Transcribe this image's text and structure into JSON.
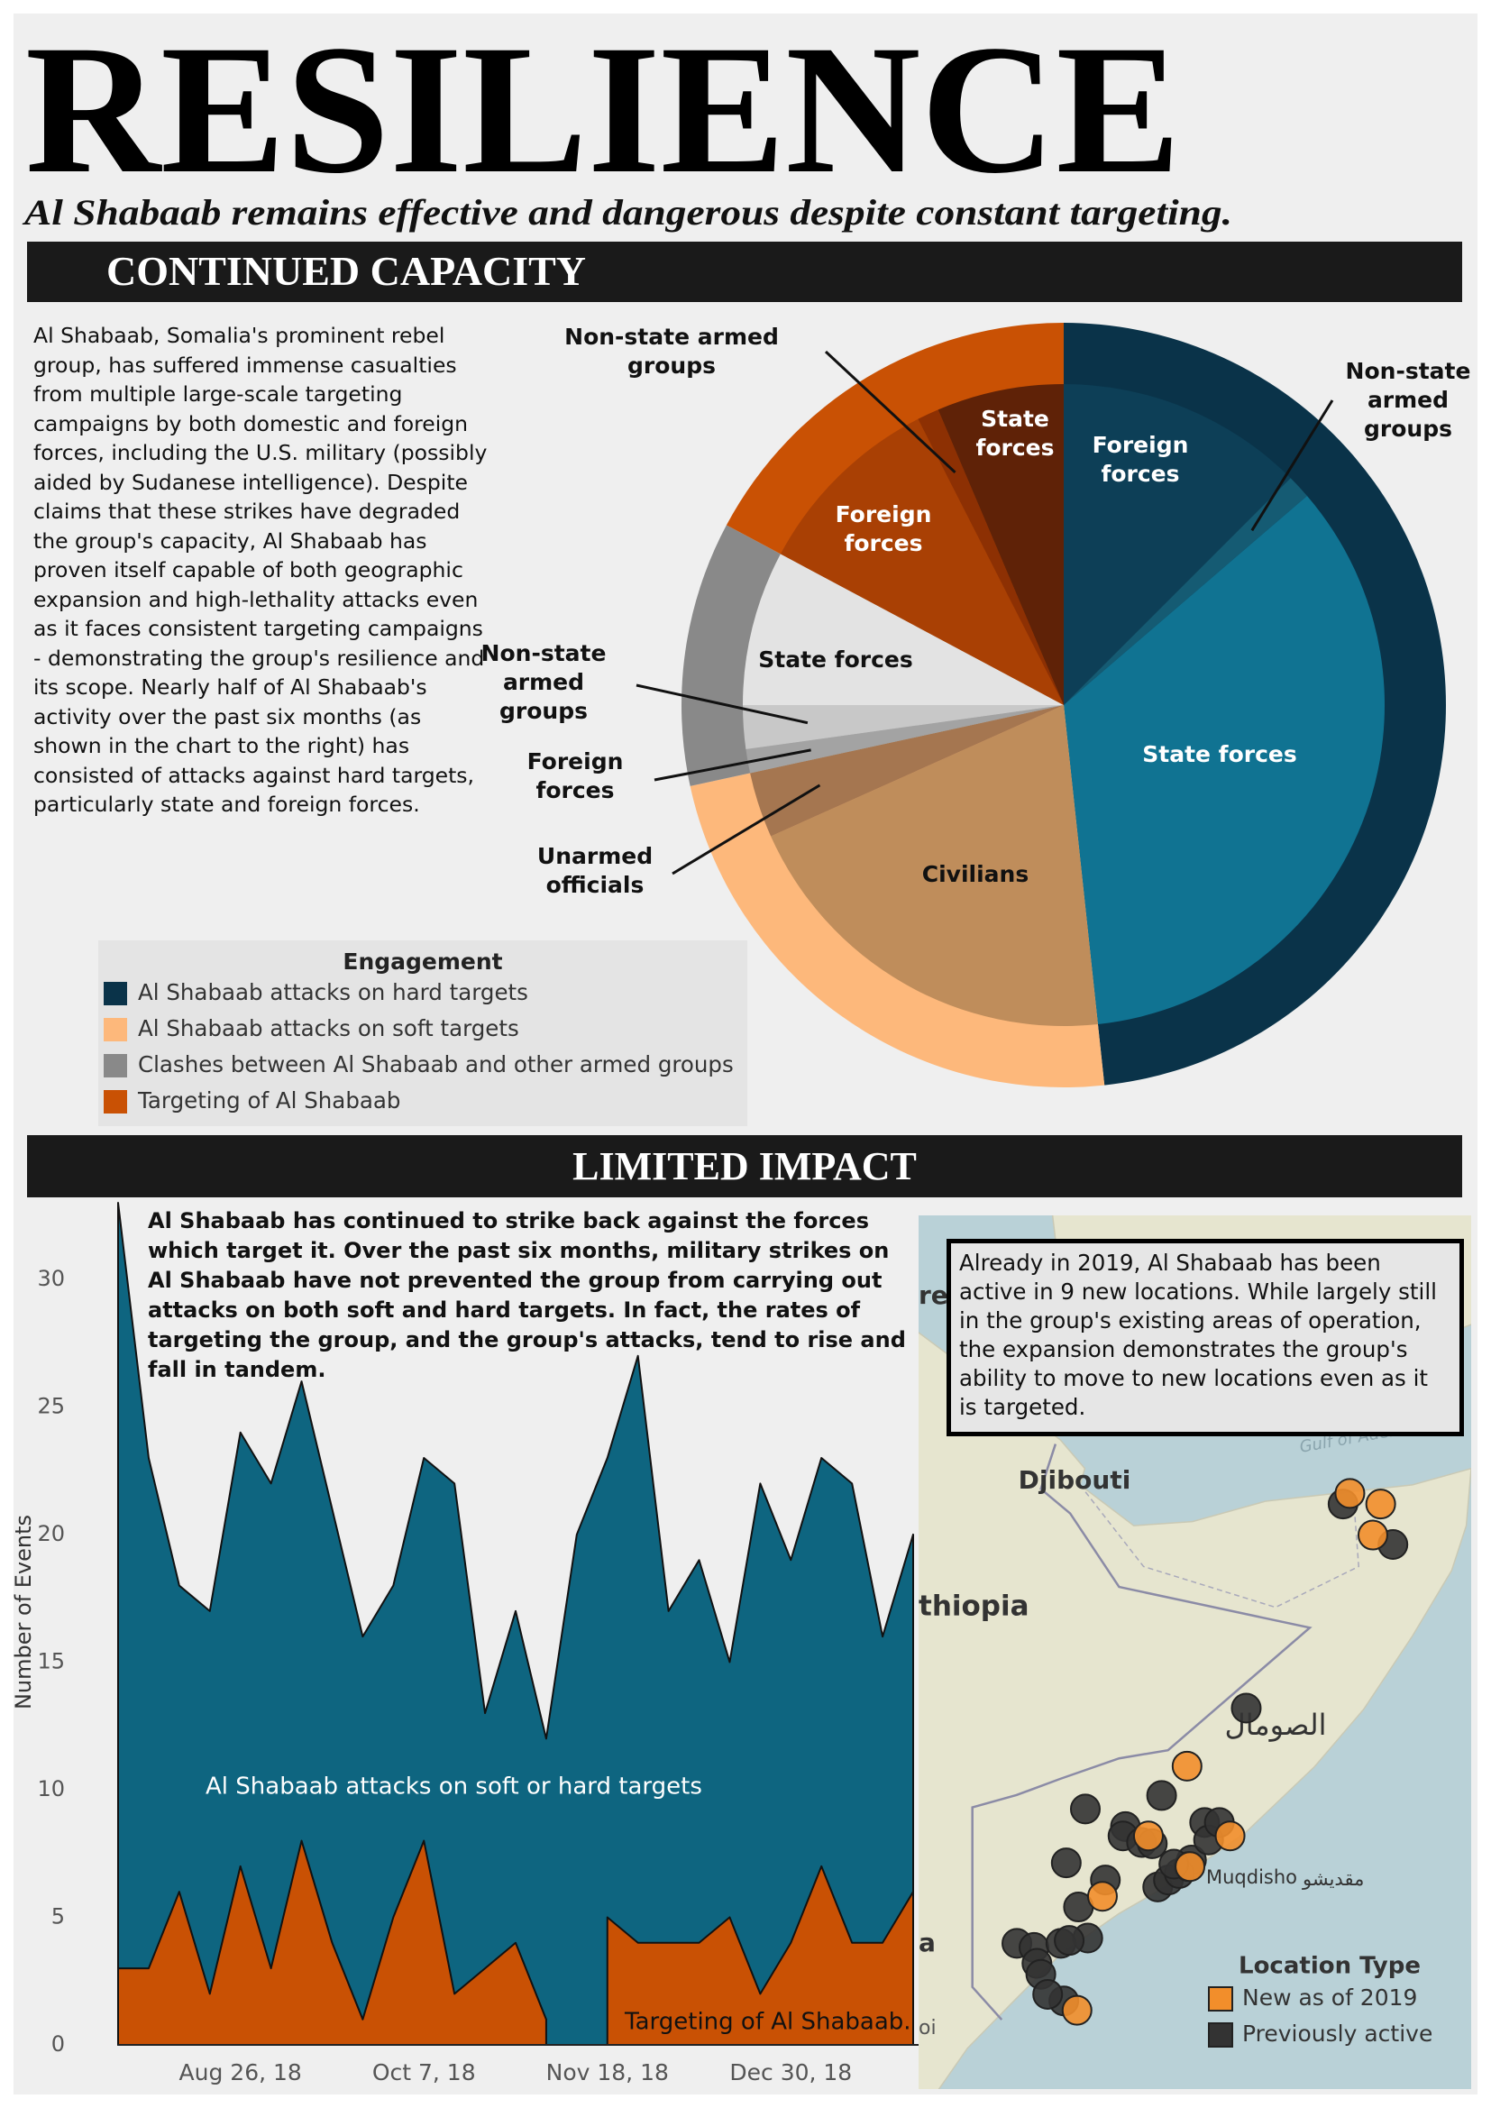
{
  "header": {
    "title": "RESILIENCE",
    "subtitle": "Al Shabaab remains effective and dangerous despite constant targeting."
  },
  "sections": [
    {
      "title": "CONTINUED CAPACITY",
      "text": "Al Shabaab, Somalia's prominent rebel group, has suffered immense casualties from multiple large-scale targeting campaigns by both domestic and foreign forces, including the U.S. military (possibly aided by Sudanese intelligence). Despite claims that these strikes have degraded the group's capacity, Al Shabaab has proven itself capable of both geographic expansion and high-lethality attacks even as it faces consistent targeting campaigns - demonstrating the group's resilience and its scope. Nearly half of Al Shabaab's activity over the past six months (as shown in the chart to the right) has consisted of attacks against hard targets, particularly state and foreign forces."
    },
    {
      "title": "LIMITED IMPACT"
    }
  ],
  "chart_data": [
    {
      "type": "pie",
      "legend_title": "Engagement",
      "groups": [
        {
          "name": "Al Shabaab attacks on hard targets",
          "color": "#0a3349",
          "value": 48.3,
          "slices": [
            {
              "name": "Foreign forces",
              "color": "#0d3f57",
              "value": 12.5
            },
            {
              "name": "Non-state armed groups",
              "color": "#155b73",
              "value": 1.2
            },
            {
              "name": "State forces",
              "color": "#107392",
              "value": 34.6
            }
          ]
        },
        {
          "name": "Al Shabaab attacks on soft targets",
          "color": "#fdb87b",
          "value": 23.3,
          "slices": [
            {
              "name": "Civilians",
              "color": "#bf8d5b",
              "value": 20.0
            },
            {
              "name": "Unarmed officials",
              "color": "#a57650",
              "value": 3.3
            }
          ]
        },
        {
          "name": "Clashes between Al Shabaab and other armed groups",
          "color": "#898989",
          "value": 11.2,
          "slices": [
            {
              "name": "Foreign forces",
              "color": "#a3a3a3",
              "value": 1.2
            },
            {
              "name": "Non-state armed groups",
              "color": "#c8c8c8",
              "value": 2.2
            },
            {
              "name": "State forces",
              "color": "#e3e3e3",
              "value": 7.8
            }
          ]
        },
        {
          "name": "Targeting of Al Shabaab",
          "color": "#c95104",
          "value": 17.2,
          "slices": [
            {
              "name": "Foreign forces",
              "color": "#a94004",
              "value": 9.7
            },
            {
              "name": "Non-state armed groups",
              "color": "#8d3003",
              "value": 1.1
            },
            {
              "name": "State forces",
              "color": "#5f2207",
              "value": 6.4
            }
          ]
        }
      ]
    },
    {
      "type": "area",
      "annotation": "Al Shabaab has continued to strike back against the forces which target it. Over the past six months, military strikes on Al Shabaab have not prevented the group from carrying out attacks on both soft and hard targets. In fact, the rates of targeting the group, and the group's attacks, tend to rise and fall in tandem.",
      "y_label": "Number of Events",
      "categories": [
        null,
        null,
        null,
        null,
        "Aug 26, 18",
        null,
        null,
        null,
        null,
        null,
        "Oct 7, 18",
        null,
        null,
        null,
        null,
        null,
        "Nov 18, 18",
        null,
        null,
        null,
        null,
        null,
        "Dec 30, 18",
        null,
        null,
        null,
        null
      ],
      "series": [
        {
          "name": "Al Shabaab attacks on soft or hard targets",
          "color": "#0e6580",
          "values": [
            33,
            23,
            18,
            17,
            24,
            22,
            26,
            21,
            16,
            18,
            23,
            22,
            13,
            17,
            12,
            20,
            23,
            27,
            17,
            19,
            15,
            22,
            19,
            23,
            22,
            16,
            20
          ]
        },
        {
          "name": "Targeting of Al Shabaab.",
          "color": "#c95104",
          "values": [
            3,
            3,
            6,
            2,
            7,
            3,
            8,
            4,
            1,
            5,
            8,
            2,
            3,
            4,
            1,
            null,
            5,
            4,
            4,
            4,
            5,
            2,
            4,
            7,
            4,
            4,
            6
          ]
        }
      ],
      "ylim": [
        0,
        33
      ],
      "yticks": [
        0,
        5,
        10,
        15,
        20,
        25,
        30
      ]
    },
    {
      "type": "map",
      "annotation": "Already in 2019, Al Shabaab has been active in 9 new locations. While largely still in the group's existing areas of operation, the expansion demonstrates the group's ability to move to new locations even as it is targeted.",
      "legend_title": "Location Type",
      "place_labels": [
        "rea",
        "Djibouti",
        "Gulf of Aden",
        "thiopia",
        "الصومال",
        "Muqdisho",
        "مقديشو",
        "a",
        "oi"
      ],
      "xlim": [
        39.9,
        51.2
      ],
      "ylim": [
        -3.3,
        18.1
      ],
      "series": [
        {
          "name": "New as of 2019",
          "color": "#f28e2b",
          "x": [
            48.72,
            49.35,
            49.19,
            45.39,
            44.6,
            46.27,
            45.45,
            43.66,
            43.14
          ],
          "y": [
            11.29,
            11.03,
            10.27,
            4.61,
            2.9,
            2.9,
            2.15,
            1.42,
            -1.37
          ]
        },
        {
          "name": "Previously active",
          "color": "#333333",
          "x": [
            48.58,
            49.6,
            46.6,
            43.31,
            44.13,
            44.08,
            44.46,
            44.87,
            45.75,
            45.48,
            45.83,
            46.05,
            44.79,
            45.01,
            45.23,
            45.42,
            45.12,
            42.92,
            43.72,
            43.17,
            43.36,
            41.91,
            42.26,
            42.32,
            42.81,
            42.98,
            42.4,
            42.87,
            42.54,
            44.68
          ],
          "y": [
            11.03,
            10.04,
            6.03,
            3.56,
            3.13,
            2.9,
            2.74,
            3.89,
            3.23,
            2.31,
            2.8,
            3.23,
            1.65,
            1.82,
            1.98,
            2.15,
            2.21,
            2.24,
            1.82,
            1.16,
            0.4,
            0.27,
            0.17,
            -0.22,
            0.27,
            0.34,
            -0.49,
            -1.14,
            -0.98,
            2.71
          ]
        }
      ]
    }
  ]
}
